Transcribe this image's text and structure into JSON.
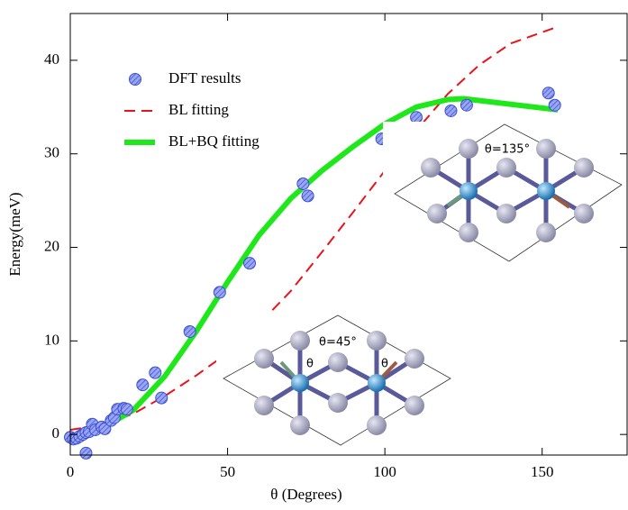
{
  "chart_data": {
    "type": "line",
    "x_label": "θ  (Degrees)",
    "y_label": "Energy(meV)",
    "xlim": [
      0,
      177
    ],
    "ylim": [
      -2.2,
      45
    ],
    "xticks": [
      0,
      50,
      100,
      150
    ],
    "yticks": [
      0,
      10,
      20,
      30,
      40
    ],
    "legend": "upper-left",
    "series": [
      {
        "name": "DFT results",
        "type": "scatter",
        "color": "#3b4fd6",
        "x": [
          0,
          1,
          2,
          3,
          4,
          5,
          5,
          6,
          7,
          8,
          10,
          11,
          13,
          14,
          15,
          17,
          18,
          23,
          27,
          29,
          38,
          47.5,
          57,
          74,
          75.5,
          99,
          110,
          121,
          126,
          152,
          154
        ],
        "values": [
          -0.3,
          -0.5,
          -0.4,
          -0.2,
          0,
          0.2,
          -2,
          0.3,
          1.1,
          0.5,
          0.8,
          0.6,
          1.5,
          1.8,
          2.7,
          2.8,
          2.7,
          5.3,
          6.6,
          3.9,
          11,
          15.2,
          18.3,
          26.8,
          25.5,
          31.6,
          33.9,
          34.6,
          35.2,
          36.5,
          35.2
        ]
      },
      {
        "name": "BL fitting",
        "type": "line",
        "dash": true,
        "width": 2,
        "color": "#e8141c",
        "x": [
          0,
          10,
          20,
          30,
          40,
          50,
          60,
          70,
          80,
          90,
          100,
          110,
          120,
          130,
          140,
          150,
          155
        ],
        "values": [
          0.5,
          1.0,
          2.2,
          4.1,
          6.3,
          8.7,
          11.8,
          15.3,
          19.5,
          23.8,
          28.2,
          32.5,
          36.4,
          39.5,
          41.8,
          43.0,
          43.6
        ]
      },
      {
        "name": "BL+BQ fitting",
        "type": "line",
        "dash": false,
        "width": 6,
        "color": "#1ee81a",
        "x": [
          0,
          10,
          20,
          30,
          40,
          50,
          60,
          70,
          80,
          90,
          100,
          110,
          120,
          125,
          155
        ],
        "values": [
          -0.3,
          0.6,
          2.6,
          6.2,
          11,
          16.3,
          21.3,
          25.2,
          28.2,
          30.8,
          33.2,
          35,
          35.8,
          35.9,
          34.7
        ]
      }
    ]
  },
  "insets": [
    {
      "label": "θ=135°"
    },
    {
      "label": "θ=45°",
      "angle_labels": [
        "θ",
        "θ"
      ]
    }
  ]
}
